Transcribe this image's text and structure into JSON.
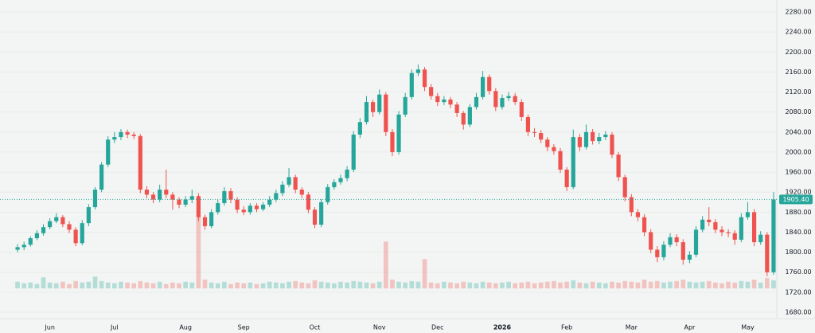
{
  "chart_data": {
    "type": "candlestick",
    "categories": [
      null,
      null,
      null,
      null,
      null,
      "Jun",
      null,
      null,
      null,
      null,
      null,
      null,
      null,
      null,
      null,
      "Jul",
      null,
      null,
      null,
      null,
      null,
      null,
      null,
      null,
      null,
      null,
      "Aug",
      null,
      null,
      null,
      null,
      null,
      null,
      null,
      null,
      "Sep",
      null,
      null,
      null,
      null,
      null,
      null,
      null,
      null,
      null,
      null,
      "Oct",
      null,
      null,
      null,
      null,
      null,
      null,
      null,
      null,
      null,
      "Nov",
      null,
      null,
      null,
      null,
      null,
      null,
      null,
      null,
      "Dec",
      null,
      null,
      null,
      null,
      null,
      null,
      null,
      null,
      null,
      "2026",
      null,
      null,
      null,
      null,
      null,
      null,
      null,
      null,
      null,
      "Feb",
      null,
      null,
      null,
      null,
      null,
      null,
      null,
      null,
      null,
      "Mar",
      null,
      null,
      null,
      null,
      null,
      null,
      null,
      null,
      "Apr",
      null,
      null,
      null,
      null,
      null,
      null,
      null,
      null,
      "May",
      null,
      null,
      null,
      null
    ],
    "open": [
      1805,
      1810,
      1815,
      1828,
      1838,
      1850,
      1862,
      1870,
      1856,
      1845,
      1818,
      1858,
      1890,
      1925,
      1975,
      2025,
      2030,
      2040,
      2035,
      2032,
      1925,
      1915,
      1905,
      1925,
      1915,
      1905,
      1895,
      1905,
      1912,
      1870,
      1852,
      1880,
      1898,
      1922,
      1905,
      1885,
      1880,
      1893,
      1886,
      1895,
      1905,
      1918,
      1935,
      1950,
      1925,
      1915,
      1885,
      1855,
      1900,
      1930,
      1940,
      1948,
      1965,
      2035,
      2060,
      2100,
      2080,
      2115,
      2040,
      2000,
      2075,
      2110,
      2158,
      2165,
      2130,
      2112,
      2100,
      2105,
      2095,
      2078,
      2055,
      2090,
      2110,
      2150,
      2122,
      2090,
      2108,
      2112,
      2100,
      2070,
      2040,
      2038,
      2025,
      2010,
      2002,
      1965,
      1930,
      2030,
      2010,
      2040,
      2022,
      2030,
      2035,
      1995,
      1950,
      1910,
      1880,
      1870,
      1840,
      1805,
      1790,
      1815,
      1830,
      1820,
      1785,
      1795,
      1845,
      1865,
      1860,
      1845,
      1840,
      1838,
      1825,
      1870,
      1880,
      1820,
      1835,
      1760
    ],
    "high": [
      1816,
      1821,
      1832,
      1844,
      1856,
      1868,
      1878,
      1874,
      1862,
      1850,
      1864,
      1896,
      1930,
      1980,
      2032,
      2040,
      2046,
      2045,
      2040,
      2036,
      1932,
      1920,
      1935,
      1965,
      1920,
      1910,
      1912,
      1925,
      1918,
      1875,
      1886,
      1905,
      1930,
      1928,
      1910,
      1892,
      1898,
      1898,
      1900,
      1912,
      1925,
      1942,
      1968,
      1955,
      1930,
      1920,
      1890,
      1906,
      1936,
      1946,
      1955,
      1972,
      2042,
      2068,
      2112,
      2105,
      2125,
      2120,
      2046,
      2082,
      2118,
      2165,
      2175,
      2170,
      2136,
      2118,
      2112,
      2110,
      2100,
      2082,
      2096,
      2118,
      2162,
      2155,
      2128,
      2115,
      2120,
      2118,
      2106,
      2075,
      2048,
      2044,
      2030,
      2016,
      2008,
      1970,
      2045,
      2036,
      2055,
      2046,
      2038,
      2042,
      2040,
      2000,
      1955,
      1916,
      1886,
      1876,
      1846,
      1812,
      1822,
      1838,
      1836,
      1826,
      1802,
      1852,
      1872,
      1890,
      1866,
      1852,
      1846,
      1844,
      1878,
      1900,
      1886,
      1842,
      1840,
      1920
    ],
    "low": [
      1800,
      1804,
      1811,
      1824,
      1833,
      1846,
      1858,
      1850,
      1838,
      1812,
      1814,
      1852,
      1886,
      1920,
      1970,
      2018,
      2024,
      2028,
      2026,
      1918,
      1908,
      1898,
      1900,
      1908,
      1885,
      1888,
      1890,
      1898,
      1862,
      1845,
      1848,
      1875,
      1893,
      1898,
      1878,
      1874,
      1875,
      1880,
      1882,
      1890,
      1900,
      1912,
      1930,
      1918,
      1908,
      1878,
      1848,
      1850,
      1895,
      1925,
      1935,
      1942,
      1960,
      2028,
      2055,
      2070,
      2075,
      2032,
      1992,
      1995,
      2070,
      2105,
      2152,
      2122,
      2105,
      2092,
      2094,
      2088,
      2070,
      2045,
      2050,
      2085,
      2105,
      2115,
      2082,
      2085,
      2102,
      2094,
      2062,
      2032,
      2030,
      2018,
      2002,
      1995,
      1958,
      1922,
      1926,
      2002,
      2005,
      2015,
      2016,
      2024,
      1988,
      1942,
      1902,
      1872,
      1862,
      1832,
      1798,
      1780,
      1784,
      1810,
      1812,
      1775,
      1778,
      1790,
      1840,
      1852,
      1838,
      1832,
      1830,
      1815,
      1820,
      1865,
      1812,
      1815,
      1752,
      1755
    ],
    "close": [
      1810,
      1815,
      1828,
      1838,
      1850,
      1862,
      1870,
      1856,
      1845,
      1818,
      1858,
      1890,
      1925,
      1975,
      2025,
      2030,
      2040,
      2035,
      2032,
      1925,
      1915,
      1905,
      1925,
      1915,
      1905,
      1895,
      1905,
      1912,
      1870,
      1852,
      1880,
      1898,
      1922,
      1905,
      1885,
      1880,
      1893,
      1886,
      1895,
      1905,
      1918,
      1935,
      1950,
      1925,
      1915,
      1885,
      1855,
      1900,
      1930,
      1940,
      1948,
      1965,
      2035,
      2060,
      2100,
      2080,
      2115,
      2040,
      2000,
      2075,
      2110,
      2158,
      2165,
      2130,
      2112,
      2100,
      2105,
      2095,
      2078,
      2055,
      2090,
      2110,
      2150,
      2122,
      2090,
      2108,
      2112,
      2100,
      2070,
      2040,
      2038,
      2025,
      2010,
      2002,
      1965,
      1930,
      2030,
      2010,
      2040,
      2022,
      2030,
      2035,
      1995,
      1950,
      1910,
      1880,
      1870,
      1840,
      1805,
      1790,
      1815,
      1830,
      1820,
      1785,
      1795,
      1845,
      1865,
      1860,
      1845,
      1840,
      1838,
      1825,
      1870,
      1880,
      1820,
      1835,
      1760,
      1905.4
    ],
    "volume": [
      9,
      7,
      8,
      6,
      15,
      8,
      7,
      9,
      6,
      10,
      8,
      9,
      16,
      10,
      8,
      7,
      9,
      8,
      7,
      10,
      8,
      7,
      9,
      6,
      8,
      7,
      9,
      8,
      100,
      12,
      8,
      7,
      9,
      6,
      8,
      7,
      8,
      6,
      7,
      9,
      8,
      7,
      9,
      10,
      8,
      7,
      11,
      9,
      8,
      7,
      9,
      8,
      10,
      9,
      8,
      7,
      9,
      64,
      12,
      9,
      8,
      10,
      9,
      40,
      8,
      7,
      9,
      8,
      7,
      9,
      8,
      7,
      9,
      8,
      7,
      8,
      9,
      7,
      8,
      9,
      7,
      8,
      9,
      10,
      8,
      9,
      11,
      8,
      7,
      9,
      8,
      7,
      9,
      8,
      10,
      9,
      8,
      12,
      9,
      10,
      8,
      9,
      10,
      12,
      9,
      8,
      9,
      10,
      8,
      7,
      9,
      8,
      10,
      9,
      12,
      8,
      14,
      11
    ],
    "up_color": "#26a69a",
    "down_color": "#ef5350",
    "ylim": [
      1680,
      2280
    ],
    "yticks": [
      {
        "value": 1680,
        "label": "1680.00"
      },
      {
        "value": 1720,
        "label": "1720.00"
      },
      {
        "value": 1760,
        "label": "1760.00"
      },
      {
        "value": 1800,
        "label": "1800.00"
      },
      {
        "value": 1840,
        "label": "1840.00"
      },
      {
        "value": 1880,
        "label": "1880.00"
      },
      {
        "value": 1920,
        "label": "1920.00"
      },
      {
        "value": 1960,
        "label": "1960.00"
      },
      {
        "value": 2000,
        "label": "2000.00"
      },
      {
        "value": 2040,
        "label": "2040.00"
      },
      {
        "value": 2080,
        "label": "2080.00"
      },
      {
        "value": 2120,
        "label": "2120.00"
      },
      {
        "value": 2160,
        "label": "2160.00"
      },
      {
        "value": 2200,
        "label": "2200.00"
      },
      {
        "value": 2240,
        "label": "2240.00"
      },
      {
        "value": 2280,
        "label": "2280.00"
      }
    ],
    "last_price": {
      "value": 1905.4,
      "label": "1905.40"
    },
    "grid": true
  }
}
